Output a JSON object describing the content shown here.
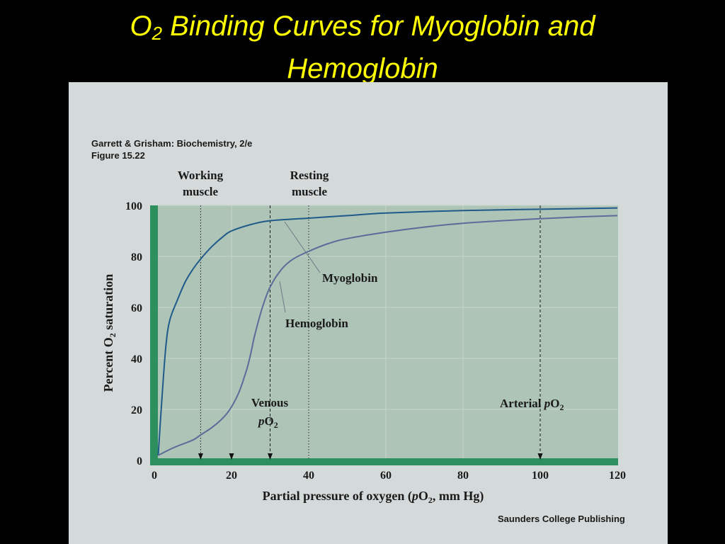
{
  "slide": {
    "title_line1_prefix": "O",
    "title_line1_sub": "2",
    "title_line1_rest": " Binding Curves for Myoglobin and",
    "title_line2": "Hemoglobin",
    "title_color": "#ffff00",
    "background": "#000000"
  },
  "figure": {
    "source_line1": "Garrett & Grisham: Biochemistry, 2/e",
    "source_line2": "Figure 15.22",
    "publisher": "Saunders College Publishing",
    "panel_color": "#d4d9d9",
    "plot_color": "#aec4b6",
    "axis_band_color": "#2e8f5e"
  },
  "annotations": {
    "working_muscle_line1": "Working",
    "working_muscle_line2": "muscle",
    "resting_muscle_line1": "Resting",
    "resting_muscle_line2": "muscle",
    "venous_line1": "Venous",
    "venous_p": "p",
    "venous_o": "O",
    "venous_sub": "2",
    "arterial_word": "Arterial ",
    "arterial_p": "p",
    "arterial_o": "O",
    "arterial_sub": "2",
    "myoglobin": "Myoglobin",
    "hemoglobin": "Hemoglobin"
  },
  "chart_data": {
    "type": "line",
    "xlabel_prefix": "Partial pressure of oxygen (",
    "xlabel_p": "p",
    "xlabel_o": "O",
    "xlabel_sub": "2",
    "xlabel_suffix": ", mm Hg)",
    "ylabel_prefix": "Percent  O",
    "ylabel_sub": "2",
    "ylabel_suffix": " saturation",
    "xlim": [
      0,
      120
    ],
    "ylim": [
      0,
      100
    ],
    "x_ticks": [
      "0",
      "20",
      "40",
      "60",
      "80",
      "100",
      "120"
    ],
    "y_ticks": [
      "0",
      "20",
      "40",
      "60",
      "80",
      "100"
    ],
    "grid": true,
    "series": [
      {
        "name": "Myoglobin",
        "color": "#1f5a8a",
        "x": [
          1,
          2,
          3,
          4,
          6,
          8,
          10,
          12,
          15,
          18,
          20,
          25,
          30,
          40,
          50,
          60,
          80,
          100,
          120
        ],
        "y": [
          2,
          25,
          45,
          55,
          63,
          70,
          75,
          79,
          84,
          88,
          90,
          92.5,
          94,
          95,
          96,
          97,
          98,
          98.5,
          99
        ]
      },
      {
        "name": "Hemoglobin",
        "color": "#5b6c9a",
        "x": [
          1,
          5,
          10,
          12,
          15,
          18,
          20,
          22,
          24,
          25,
          26,
          28,
          30,
          33,
          36,
          40,
          45,
          50,
          60,
          70,
          80,
          90,
          100,
          110,
          120
        ],
        "y": [
          2,
          5,
          8,
          10,
          13,
          17,
          21,
          27,
          36,
          42,
          49,
          60,
          68,
          75,
          79,
          82,
          85,
          87,
          89.5,
          91.5,
          93,
          94,
          94.8,
          95.5,
          96
        ]
      }
    ],
    "reference_lines": [
      {
        "x": 12,
        "style": "dotted",
        "label": "working"
      },
      {
        "x": 30,
        "style": "dashed",
        "label": "resting"
      },
      {
        "x": 40,
        "style": "dotted",
        "label": ""
      },
      {
        "x": 100,
        "style": "dashed",
        "label": "arterial"
      }
    ],
    "axis_arrows": [
      12,
      20,
      30,
      100
    ]
  }
}
